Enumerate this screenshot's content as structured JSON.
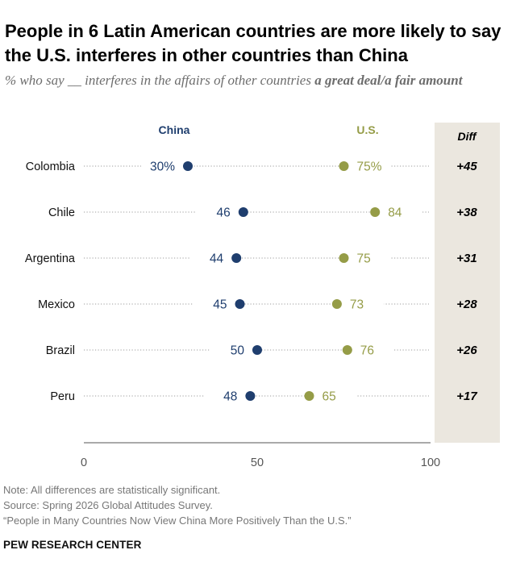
{
  "title": "People in 6 Latin American countries are more likely to say the U.S. interferes in other countries than China",
  "subtitle": {
    "prefix": "% who say __ interferes in the affairs of other countries ",
    "emphasis": "a great deal/a fair amount"
  },
  "chart_data": {
    "type": "dot",
    "x_ticks": [
      0,
      50,
      100
    ],
    "xlim": [
      0,
      100
    ],
    "diff_header": "Diff",
    "series": [
      {
        "name": "China",
        "color": "#1f3e6e",
        "labels": [
          "30%",
          "46",
          "44",
          "45",
          "50",
          "48"
        ],
        "values": [
          30,
          46,
          44,
          45,
          50,
          48
        ]
      },
      {
        "name": "U.S.",
        "color": "#959c47",
        "labels": [
          "75%",
          "84",
          "75",
          "73",
          "76",
          "65"
        ],
        "values": [
          75,
          84,
          75,
          73,
          76,
          65
        ]
      }
    ],
    "categories": [
      "Colombia",
      "Chile",
      "Argentina",
      "Mexico",
      "Brazil",
      "Peru"
    ],
    "diff": [
      "+45",
      "+38",
      "+31",
      "+28",
      "+26",
      "+17"
    ]
  },
  "notes": {
    "note": "Note: All differences are statistically significant.",
    "source": "Source: Spring 2026 Global Attitudes Survey.",
    "report": "“People in Many Countries Now View China More Positively Than the U.S.”"
  },
  "brand": "PEW RESEARCH CENTER",
  "colors": {
    "china": "#1f3e6e",
    "us": "#959c47",
    "diff_bg": "#ebe7df",
    "dots": "#b0b0b0",
    "text_gray": "#6d6d6d"
  }
}
